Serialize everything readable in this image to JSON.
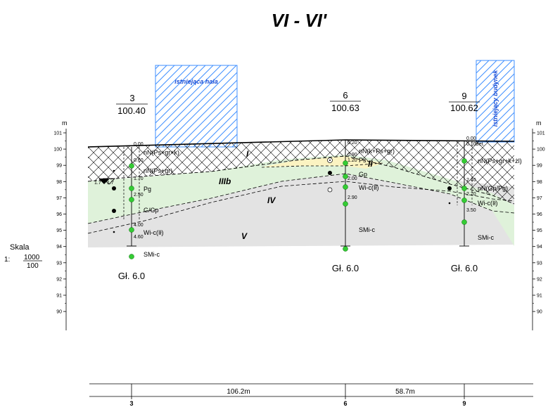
{
  "title": "VI - VI'",
  "axis": {
    "unit_left": "m",
    "unit_right": "m",
    "ticks": [
      "101",
      "100",
      "99",
      "98",
      "97",
      "96",
      "95",
      "94",
      "93",
      "92",
      "91",
      "90"
    ]
  },
  "scale": {
    "label": "Skala",
    "prefix": "1:",
    "numerator": "1000",
    "denominator": "100"
  },
  "buildings": [
    {
      "label": "istniejąca hala"
    },
    {
      "label": "istniejący budynek"
    }
  ],
  "boreholes": [
    {
      "number": "3",
      "elevation": "100.40",
      "depth_label": "Gł. 6.0",
      "layers": [
        {
          "top": "0.00",
          "desc": "nN(Ps+gr+k)"
        },
        {
          "top": "0.60",
          "desc": "nN(Ps+gr)"
        },
        {
          "top": "1.70",
          "desc": "Pg"
        },
        {
          "top": "2.50",
          "desc": "G/Gp"
        },
        {
          "top": "4.00",
          "desc": "Wi-c(Ił)"
        },
        {
          "top": "4.60",
          "desc": "SMi-c"
        }
      ],
      "water": [
        "1.7",
        "1.7"
      ]
    },
    {
      "number": "6",
      "elevation": "100.63",
      "depth_label": "Gł. 6.0",
      "layers": [
        {
          "top": "0.20",
          "desc": "nN(k+Ps+gr)"
        },
        {
          "top": "0.90",
          "desc": ""
        },
        {
          "top": "1.20",
          "desc": "Ps"
        },
        {
          "top": "2.00",
          "desc": "Gp"
        },
        {
          "top": "",
          "desc": "Wi-c(Ił)"
        },
        {
          "top": "2.90",
          "desc": "SMi-c"
        }
      ]
    },
    {
      "number": "9",
      "elevation": "100.62",
      "depth_label": "Gł. 6.0",
      "layers": [
        {
          "top": "0.00",
          "desc": ""
        },
        {
          "top": "0.10",
          "desc": "Bet."
        },
        {
          "top": "",
          "desc": "nN(Ps+gr+k+żl)"
        },
        {
          "top": "2.40",
          "desc": "nN(Gp/Pg)"
        },
        {
          "top": "2.70",
          "desc": "Wi-c(Ił)"
        },
        {
          "top": "3.50",
          "desc": "SMi-c"
        }
      ]
    }
  ],
  "zones": [
    "I",
    "II",
    "IIIb",
    "IV",
    "V"
  ],
  "distances": [
    "106.2m",
    "58.7m"
  ],
  "distance_labels": [
    "3",
    "6",
    "9"
  ],
  "colors": {
    "fill_IIIb": "#dff2da",
    "fill_II": "#fbf3c2",
    "fill_V": "#e3e3e3",
    "hatch_buildings": "#3f8fff",
    "sample_green": "#34cc34"
  }
}
